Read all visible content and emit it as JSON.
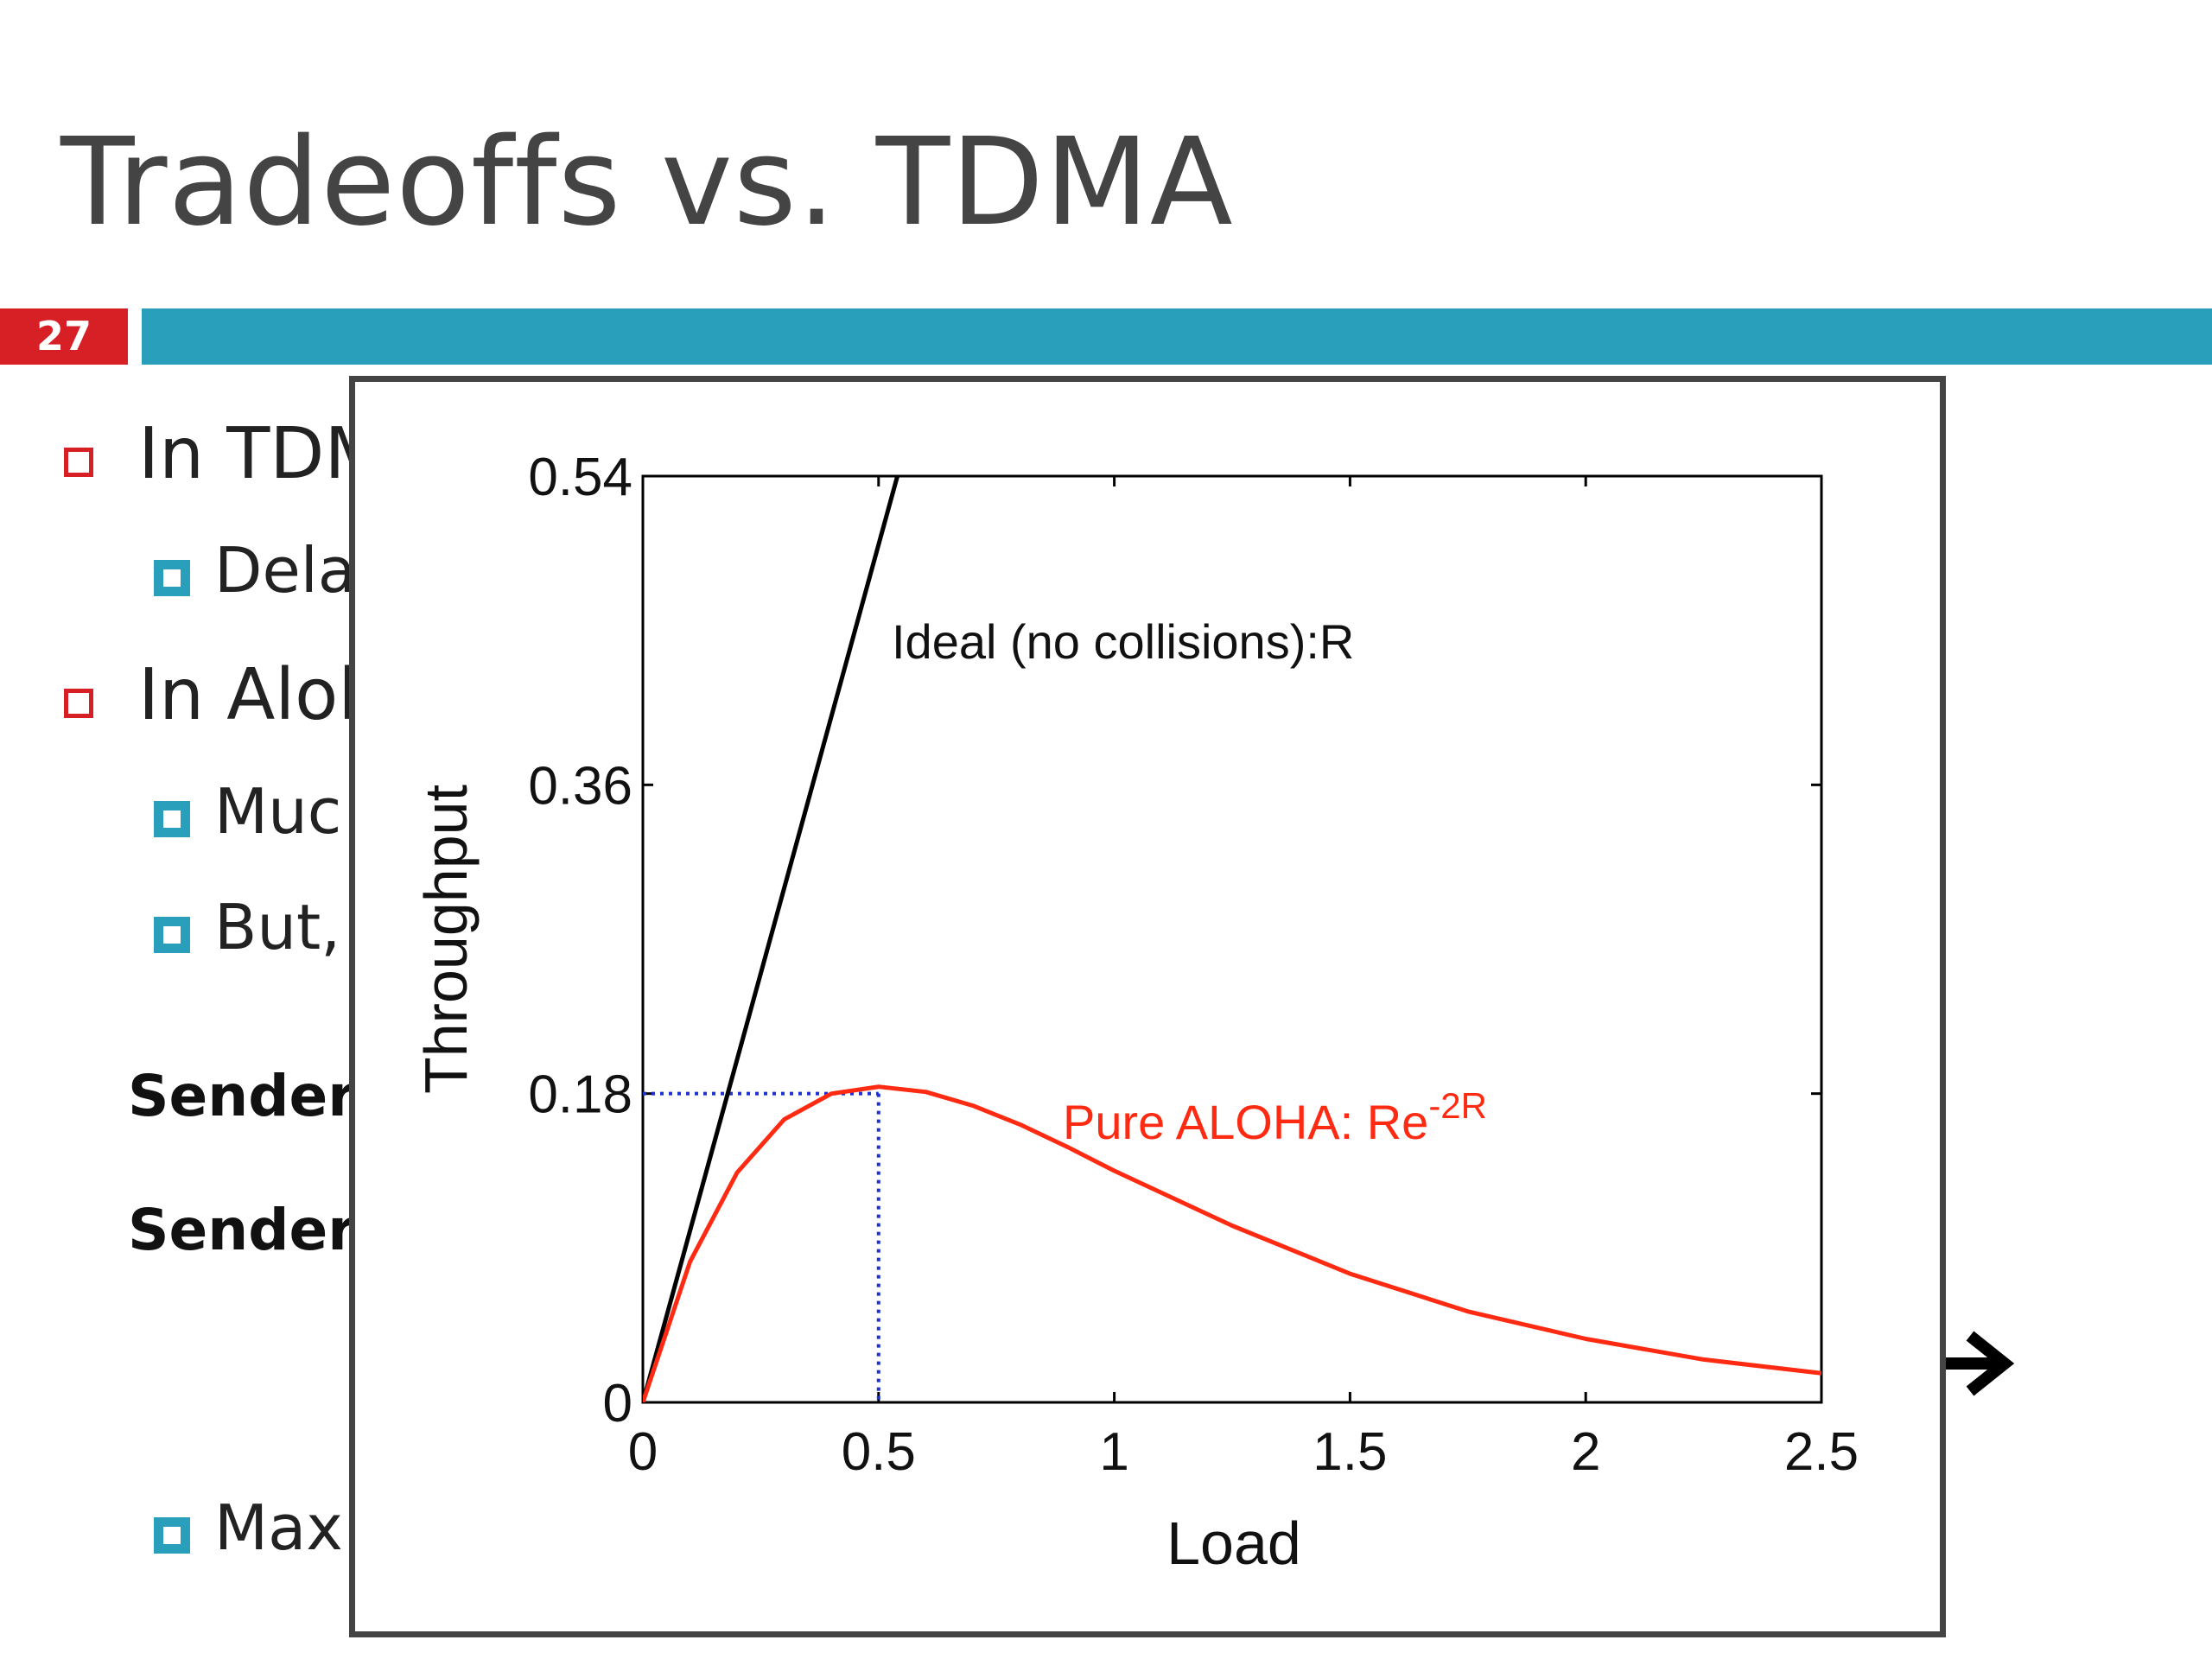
{
  "slide": {
    "title": "Tradeoffs vs. TDMA",
    "number": "27",
    "bullets": [
      {
        "level": 1,
        "text": "In TDM"
      },
      {
        "level": 2,
        "text": "Dela"
      },
      {
        "level": 1,
        "text": "In Alol"
      },
      {
        "level": 2,
        "text": "Muc"
      },
      {
        "level": 2,
        "text": "But,"
      },
      {
        "level": 2,
        "text": "Max"
      }
    ],
    "sender_labels": [
      "Sender",
      "Sender"
    ]
  },
  "colors": {
    "title_bar": "#2a9fbc",
    "slide_number_bg": "#d71f26",
    "ideal_line": "#000000",
    "aloha_curve": "#ff2a12",
    "guide_lines": "#1c2fd0"
  },
  "chart_data": {
    "type": "line",
    "xlabel": "Load",
    "ylabel": "Throughput",
    "xlim": [
      0,
      2.5
    ],
    "ylim": [
      0,
      0.54
    ],
    "xticks": [
      "0",
      "0.5",
      "1",
      "1.5",
      "2",
      "2.5"
    ],
    "yticks": [
      "0",
      "0.18",
      "0.36",
      "0.54"
    ],
    "series": [
      {
        "name": "Ideal (no collisions):R",
        "x": [
          0,
          0.54
        ],
        "y": [
          0,
          0.54
        ]
      },
      {
        "name": "Pure ALOHA: Re^-2R",
        "label_main": "Pure ALOHA: Re",
        "label_sup": "-2R",
        "x": [
          0,
          0.1,
          0.2,
          0.3,
          0.4,
          0.5,
          0.6,
          0.7,
          0.8,
          0.9,
          1.0,
          1.25,
          1.5,
          1.75,
          2.0,
          2.25,
          2.5
        ],
        "y": [
          0,
          0.082,
          0.134,
          0.165,
          0.18,
          0.184,
          0.181,
          0.173,
          0.162,
          0.149,
          0.135,
          0.103,
          0.075,
          0.053,
          0.037,
          0.025,
          0.017
        ]
      }
    ],
    "annotations": {
      "max_point": {
        "x": 0.5,
        "y": 0.18
      }
    },
    "grid": false
  }
}
